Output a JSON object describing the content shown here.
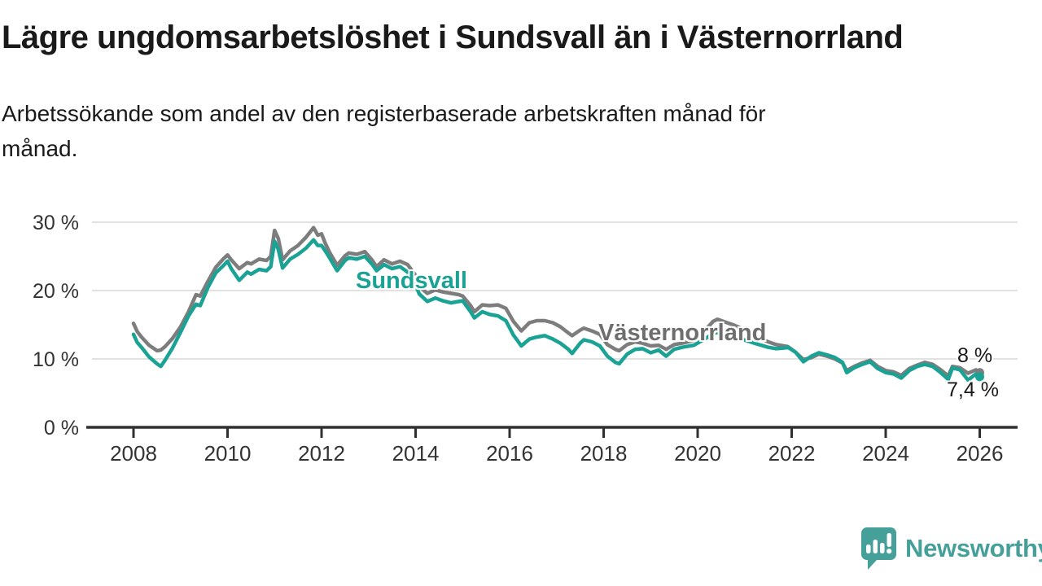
{
  "title": "Lägre ungdomsarbetslöshet i Sundsvall än i Västernorrland",
  "subtitle": "Arbetssökande som andel av den registerbaserade arbetskraften månad för månad.",
  "branding": {
    "logo_text": "Newsworthy",
    "logo_color": "#46a09a"
  },
  "axis_colors": {
    "grid": "#e2e2e2",
    "axis": "#303030",
    "tick_label": "#333333"
  },
  "chart_data": {
    "type": "line",
    "title": "Lägre ungdomsarbetslöshet i Sundsvall än i Västernorrland",
    "subtitle": "Arbetssökande som andel av den registerbaserade arbetskraften månad för månad.",
    "unit": "percent",
    "grid": "horizontal",
    "legend_position": "inline-labels",
    "xlim": [
      2008,
      2026.1
    ],
    "ylim": [
      0,
      31
    ],
    "y_ticks": [
      0,
      10,
      20,
      30
    ],
    "y_tick_labels": [
      "0 %",
      "10 %",
      "20 %",
      "30 %"
    ],
    "x_ticks": [
      2008,
      2010,
      2012,
      2014,
      2016,
      2018,
      2020,
      2022,
      2024,
      2026
    ],
    "x_tick_labels": [
      "2008",
      "2010",
      "2012",
      "2014",
      "2016",
      "2018",
      "2020",
      "2022",
      "2024",
      "2026"
    ],
    "x": [
      2008.0,
      2008.08,
      2008.17,
      2008.33,
      2008.5,
      2008.58,
      2008.67,
      2008.83,
      2009.0,
      2009.17,
      2009.33,
      2009.42,
      2009.58,
      2009.75,
      2009.92,
      2010.0,
      2010.08,
      2010.25,
      2010.42,
      2010.5,
      2010.67,
      2010.83,
      2010.92,
      2011.0,
      2011.08,
      2011.17,
      2011.33,
      2011.5,
      2011.67,
      2011.83,
      2011.92,
      2012.0,
      2012.08,
      2012.17,
      2012.33,
      2012.5,
      2012.58,
      2012.75,
      2012.92,
      2013.08,
      2013.17,
      2013.33,
      2013.5,
      2013.67,
      2013.83,
      2014.0,
      2014.08,
      2014.25,
      2014.42,
      2014.58,
      2014.75,
      2014.92,
      2015.0,
      2015.17,
      2015.25,
      2015.42,
      2015.58,
      2015.75,
      2015.92,
      2016.08,
      2016.25,
      2016.42,
      2016.58,
      2016.75,
      2016.92,
      2017.08,
      2017.25,
      2017.33,
      2017.5,
      2017.58,
      2017.75,
      2017.92,
      2018.08,
      2018.25,
      2018.33,
      2018.5,
      2018.67,
      2018.83,
      2019.0,
      2019.17,
      2019.33,
      2019.5,
      2019.67,
      2019.92,
      2020.17,
      2020.33,
      2020.42,
      2020.58,
      2020.75,
      2020.92,
      2021.08,
      2021.25,
      2021.5,
      2021.67,
      2021.83,
      2021.92,
      2022.08,
      2022.25,
      2022.42,
      2022.58,
      2022.75,
      2022.92,
      2023.08,
      2023.17,
      2023.33,
      2023.5,
      2023.67,
      2023.83,
      2024.0,
      2024.17,
      2024.33,
      2024.5,
      2024.67,
      2024.83,
      2025.0,
      2025.17,
      2025.33,
      2025.42,
      2025.58,
      2025.75,
      2025.92,
      2026.0
    ],
    "series": [
      {
        "name": "Västernorrland",
        "color": "#7d7d7d",
        "label_color": "#6e6e6e",
        "end_label": "8 %",
        "values": [
          15.2,
          14.0,
          13.2,
          12.0,
          11.2,
          11.3,
          11.8,
          13.0,
          14.7,
          16.9,
          19.4,
          19.2,
          21.3,
          23.4,
          24.7,
          25.2,
          24.5,
          23.2,
          24.1,
          23.9,
          24.6,
          24.4,
          25.0,
          28.8,
          27.6,
          24.5,
          25.8,
          26.6,
          27.8,
          29.2,
          28.1,
          28.3,
          26.9,
          25.6,
          23.7,
          25.1,
          25.5,
          25.3,
          25.7,
          24.4,
          23.5,
          24.5,
          23.9,
          24.3,
          23.8,
          22.2,
          20.6,
          19.6,
          20.1,
          19.8,
          19.6,
          19.4,
          19.2,
          17.8,
          16.9,
          17.9,
          17.8,
          17.9,
          17.4,
          15.5,
          14.1,
          15.3,
          15.6,
          15.6,
          15.3,
          14.7,
          13.8,
          13.4,
          14.2,
          14.5,
          14.1,
          13.6,
          12.1,
          11.4,
          11.2,
          12.1,
          12.5,
          12.3,
          11.9,
          12.0,
          11.4,
          12.1,
          12.3,
          12.7,
          14.3,
          15.5,
          15.8,
          15.4,
          15.0,
          14.5,
          13.9,
          13.3,
          12.5,
          12.1,
          11.9,
          11.8,
          11.0,
          9.9,
          10.2,
          10.7,
          10.4,
          10.0,
          9.4,
          8.3,
          8.9,
          9.4,
          9.8,
          8.9,
          8.3,
          8.1,
          7.6,
          8.6,
          9.1,
          9.5,
          9.2,
          8.4,
          7.5,
          8.9,
          8.7,
          7.9,
          8.4,
          8.0
        ]
      },
      {
        "name": "Sundsvall",
        "color": "#1aa394",
        "label_color": "#1aa394",
        "end_label": "7,4 %",
        "values": [
          13.6,
          12.4,
          11.7,
          10.3,
          9.3,
          8.9,
          9.8,
          11.6,
          13.9,
          16.3,
          18.0,
          17.8,
          20.4,
          22.6,
          23.7,
          24.3,
          23.2,
          21.5,
          22.7,
          22.4,
          23.1,
          22.9,
          23.5,
          27.2,
          26.0,
          23.3,
          24.6,
          25.3,
          26.2,
          27.4,
          26.6,
          26.6,
          25.8,
          24.8,
          22.9,
          24.4,
          24.8,
          24.6,
          25.0,
          23.8,
          22.9,
          23.8,
          23.2,
          23.5,
          22.7,
          20.8,
          19.5,
          18.4,
          18.9,
          18.5,
          18.2,
          18.4,
          18.5,
          16.9,
          16.0,
          16.9,
          16.5,
          16.3,
          15.6,
          13.5,
          11.9,
          12.9,
          13.2,
          13.4,
          12.9,
          12.3,
          11.4,
          10.8,
          12.3,
          12.8,
          12.5,
          11.9,
          10.4,
          9.5,
          9.3,
          10.7,
          11.4,
          11.5,
          10.9,
          11.3,
          10.4,
          11.4,
          11.7,
          12.0,
          13.0,
          13.7,
          13.9,
          13.6,
          13.3,
          12.9,
          12.6,
          12.2,
          11.7,
          11.5,
          11.6,
          11.7,
          11.0,
          9.6,
          10.4,
          10.9,
          10.6,
          10.2,
          9.5,
          8.0,
          8.7,
          9.2,
          9.6,
          8.6,
          8.0,
          7.8,
          7.2,
          8.3,
          8.9,
          9.2,
          8.9,
          8.0,
          7.0,
          8.7,
          8.4,
          6.9,
          7.8,
          7.4
        ]
      }
    ]
  }
}
